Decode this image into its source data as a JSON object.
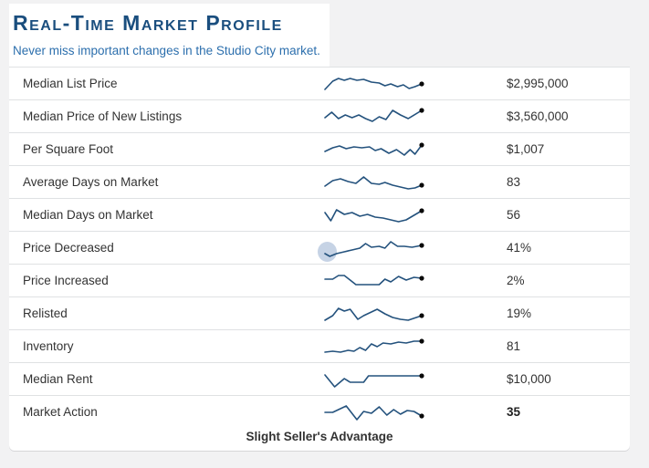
{
  "header": {
    "title": "Real-Time Market Profile",
    "subtitle": "Never miss important changes in the Studio City market."
  },
  "footer": {
    "market_status": "Slight Seller's Advantage"
  },
  "colors": {
    "title_text": "#1a4e7e",
    "subtitle_text": "#2c6fad",
    "sparkline_stroke": "#24527d",
    "sparkline_dot": "#0a0a0a",
    "row_border": "#dfe1e3",
    "page_background": "#f2f2f3",
    "card_background": "#ffffff",
    "cursor_highlight": "rgba(152,175,208,0.55)"
  },
  "rows": [
    {
      "label": "Median List Price",
      "value": "$2,995,000",
      "value_bold": false,
      "highlight": false,
      "spark": [
        [
          0,
          17
        ],
        [
          8,
          8
        ],
        [
          14,
          5
        ],
        [
          20,
          7
        ],
        [
          26,
          5
        ],
        [
          33,
          7
        ],
        [
          40,
          6
        ],
        [
          48,
          9
        ],
        [
          56,
          10
        ],
        [
          62,
          13
        ],
        [
          68,
          11
        ],
        [
          75,
          14
        ],
        [
          81,
          12
        ],
        [
          87,
          16
        ],
        [
          93,
          14
        ],
        [
          100,
          11
        ]
      ]
    },
    {
      "label": "Median Price of New Listings",
      "value": "$3,560,000",
      "value_bold": false,
      "highlight": false,
      "spark": [
        [
          0,
          12
        ],
        [
          7,
          6
        ],
        [
          14,
          13
        ],
        [
          21,
          9
        ],
        [
          28,
          12
        ],
        [
          35,
          9
        ],
        [
          42,
          13
        ],
        [
          49,
          16
        ],
        [
          56,
          11
        ],
        [
          63,
          14
        ],
        [
          70,
          4
        ],
        [
          78,
          9
        ],
        [
          86,
          13
        ],
        [
          100,
          4
        ]
      ]
    },
    {
      "label": "Per Square Foot",
      "value": "$1,007",
      "value_bold": false,
      "highlight": false,
      "spark": [
        [
          0,
          13
        ],
        [
          8,
          9
        ],
        [
          15,
          7
        ],
        [
          22,
          10
        ],
        [
          30,
          8
        ],
        [
          38,
          9
        ],
        [
          46,
          8
        ],
        [
          52,
          12
        ],
        [
          58,
          10
        ],
        [
          66,
          15
        ],
        [
          74,
          11
        ],
        [
          82,
          17
        ],
        [
          88,
          11
        ],
        [
          93,
          16
        ],
        [
          100,
          6
        ]
      ]
    },
    {
      "label": "Average Days on Market",
      "value": "83",
      "value_bold": false,
      "highlight": false,
      "spark": [
        [
          0,
          15
        ],
        [
          8,
          9
        ],
        [
          16,
          7
        ],
        [
          24,
          10
        ],
        [
          32,
          12
        ],
        [
          40,
          5
        ],
        [
          48,
          12
        ],
        [
          56,
          13
        ],
        [
          62,
          11
        ],
        [
          70,
          14
        ],
        [
          78,
          16
        ],
        [
          86,
          18
        ],
        [
          93,
          17
        ],
        [
          100,
          14
        ]
      ]
    },
    {
      "label": "Median Days on Market",
      "value": "56",
      "value_bold": false,
      "highlight": false,
      "spark": [
        [
          0,
          8
        ],
        [
          6,
          17
        ],
        [
          12,
          5
        ],
        [
          20,
          10
        ],
        [
          28,
          8
        ],
        [
          36,
          12
        ],
        [
          44,
          10
        ],
        [
          52,
          13
        ],
        [
          60,
          14
        ],
        [
          68,
          16
        ],
        [
          76,
          18
        ],
        [
          84,
          16
        ],
        [
          100,
          6
        ]
      ]
    },
    {
      "label": "Price Decreased",
      "value": "41%",
      "value_bold": false,
      "highlight": true,
      "spark": [
        [
          0,
          17
        ],
        [
          5,
          20
        ],
        [
          12,
          17
        ],
        [
          20,
          15
        ],
        [
          28,
          13
        ],
        [
          36,
          11
        ],
        [
          42,
          6
        ],
        [
          48,
          10
        ],
        [
          56,
          9
        ],
        [
          62,
          11
        ],
        [
          68,
          4
        ],
        [
          75,
          9
        ],
        [
          82,
          9
        ],
        [
          90,
          10
        ],
        [
          100,
          8
        ]
      ]
    },
    {
      "label": "Price Increased",
      "value": "2%",
      "value_bold": false,
      "highlight": false,
      "spark": [
        [
          0,
          9
        ],
        [
          8,
          9
        ],
        [
          14,
          5
        ],
        [
          20,
          5
        ],
        [
          26,
          10
        ],
        [
          32,
          15
        ],
        [
          40,
          15
        ],
        [
          48,
          15
        ],
        [
          56,
          15
        ],
        [
          62,
          9
        ],
        [
          68,
          12
        ],
        [
          76,
          6
        ],
        [
          84,
          10
        ],
        [
          92,
          7
        ],
        [
          100,
          8
        ]
      ]
    },
    {
      "label": "Relisted",
      "value": "19%",
      "value_bold": false,
      "highlight": false,
      "spark": [
        [
          0,
          18
        ],
        [
          8,
          13
        ],
        [
          14,
          5
        ],
        [
          20,
          8
        ],
        [
          26,
          6
        ],
        [
          34,
          17
        ],
        [
          40,
          13
        ],
        [
          48,
          9
        ],
        [
          54,
          6
        ],
        [
          62,
          11
        ],
        [
          70,
          15
        ],
        [
          78,
          17
        ],
        [
          86,
          18
        ],
        [
          100,
          13
        ]
      ]
    },
    {
      "label": "Inventory",
      "value": "81",
      "value_bold": false,
      "highlight": false,
      "spark": [
        [
          0,
          17
        ],
        [
          8,
          16
        ],
        [
          16,
          17
        ],
        [
          24,
          15
        ],
        [
          30,
          16
        ],
        [
          36,
          12
        ],
        [
          42,
          15
        ],
        [
          48,
          8
        ],
        [
          54,
          11
        ],
        [
          60,
          7
        ],
        [
          68,
          8
        ],
        [
          76,
          6
        ],
        [
          84,
          7
        ],
        [
          92,
          5
        ],
        [
          100,
          5
        ]
      ]
    },
    {
      "label": "Median Rent",
      "value": "$10,000",
      "value_bold": false,
      "highlight": false,
      "spark": [
        [
          0,
          6
        ],
        [
          10,
          19
        ],
        [
          20,
          10
        ],
        [
          26,
          14
        ],
        [
          40,
          14
        ],
        [
          45,
          7
        ],
        [
          70,
          7
        ],
        [
          100,
          7
        ]
      ]
    },
    {
      "label": "Market Action",
      "value": "35",
      "value_bold": true,
      "highlight": false,
      "spark": [
        [
          0,
          11
        ],
        [
          8,
          11
        ],
        [
          14,
          8
        ],
        [
          22,
          4
        ],
        [
          33,
          19
        ],
        [
          40,
          10
        ],
        [
          48,
          12
        ],
        [
          56,
          5
        ],
        [
          64,
          14
        ],
        [
          71,
          8
        ],
        [
          78,
          13
        ],
        [
          85,
          9
        ],
        [
          92,
          10
        ],
        [
          100,
          15
        ]
      ]
    }
  ]
}
